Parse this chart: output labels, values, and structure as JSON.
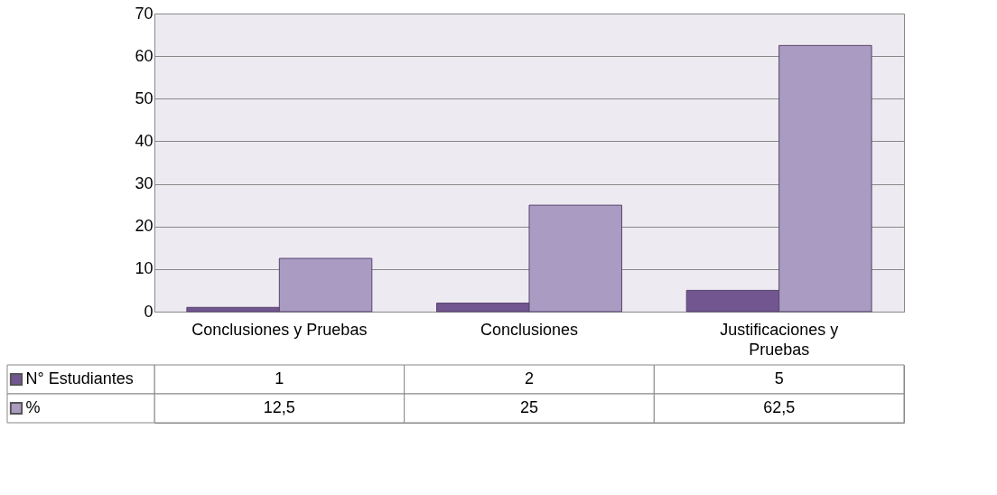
{
  "chart_data": {
    "type": "bar",
    "categories": [
      "Conclusiones y Pruebas",
      "Conclusiones",
      "Justificaciones y Pruebas"
    ],
    "series": [
      {
        "name": "N° Estudiantes",
        "color": "#715690",
        "values": [
          1,
          2,
          5
        ],
        "value_labels": [
          "1",
          "2",
          "5"
        ]
      },
      {
        "name": "%",
        "color": "#a99bc1",
        "values": [
          12.5,
          25,
          62.5
        ],
        "value_labels": [
          "12,5",
          "25",
          "62,5"
        ]
      }
    ],
    "ylim": [
      0,
      70
    ],
    "yticks": [
      0,
      10,
      20,
      30,
      40,
      50,
      60,
      70
    ],
    "grid": "y",
    "legend": "bottom left"
  }
}
